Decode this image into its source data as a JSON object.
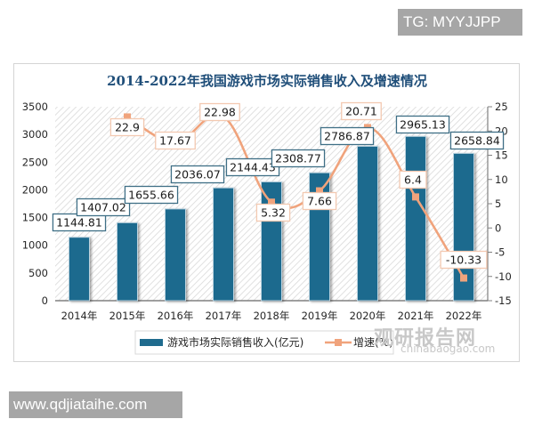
{
  "watermarks": {
    "top_right": "TG: MYYJJPP",
    "bottom_left": "www.qdjiataihe.com",
    "brand_cn": "观研报告网",
    "brand_en": "chinabaogao.com"
  },
  "colors": {
    "bar": "#1f6b8e",
    "bar_label_border": "#3f6f86",
    "line": "#f0a37c",
    "line_label_border": "#f3c9b1",
    "title": "#1f4e79",
    "axis_text": "#262626"
  },
  "chart_data": {
    "type": "bar",
    "title": "2014-2022年我国游戏市场实际销售收入及增速情况",
    "categories": [
      "2014年",
      "2015年",
      "2016年",
      "2017年",
      "2018年",
      "2019年",
      "2020年",
      "2021年",
      "2022年"
    ],
    "series": [
      {
        "name": "游戏市场实际销售收入(亿元)",
        "type": "bar",
        "axis": "left",
        "values": [
          1144.81,
          1407.02,
          1655.66,
          2036.07,
          2144.43,
          2308.77,
          2786.87,
          2965.13,
          2658.84
        ]
      },
      {
        "name": "增速(%)",
        "type": "line",
        "axis": "right",
        "values": [
          null,
          22.9,
          17.67,
          22.98,
          5.32,
          7.66,
          20.71,
          6.4,
          -10.33
        ]
      }
    ],
    "left_axis": {
      "ticks": [
        0,
        500,
        1000,
        1500,
        2000,
        2500,
        3000,
        3500
      ],
      "ylim": [
        0,
        3500
      ]
    },
    "right_axis": {
      "ticks": [
        -15,
        -10,
        -5,
        0,
        5,
        10,
        15,
        20,
        25
      ],
      "ylim": [
        -15,
        25
      ]
    },
    "xlabel": "",
    "ylabel": "",
    "legend": {
      "position": "bottom",
      "entries": [
        "游戏市场实际销售收入(亿元)",
        "增速(%)"
      ]
    },
    "grid": false,
    "bar_labels": [
      "1144.81",
      "1407.02",
      "1655.66",
      "2036.07",
      "2144.43",
      "2308.77",
      "2786.87",
      "2965.13",
      "2658.84"
    ],
    "line_labels": [
      "",
      "22.9",
      "17.67",
      "22.98",
      "5.32",
      "7.66",
      "20.71",
      "6.4",
      "-10.33"
    ]
  }
}
